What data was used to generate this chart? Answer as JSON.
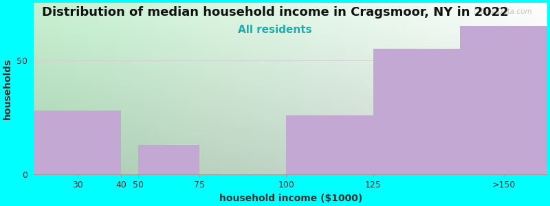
{
  "title": "Distribution of median household income in Cragsmoor, NY in 2022",
  "subtitle": "All residents",
  "xlabel": "household income ($1000)",
  "ylabel": "households",
  "background_color": "#00FFFF",
  "bar_color": "#c4a8d4",
  "watermark": "Ⓢ City-Data.com",
  "categories": [
    "30",
    "40",
    "50",
    "75",
    "100",
    "125",
    ">150"
  ],
  "bar_lefts": [
    15,
    40,
    45,
    62.5,
    87.5,
    112.5,
    137.5
  ],
  "bar_rights": [
    40,
    45,
    62.5,
    87.5,
    112.5,
    137.5,
    162.5
  ],
  "values": [
    28,
    0,
    13,
    0,
    26,
    55,
    65
  ],
  "tick_vals": [
    15,
    40,
    45,
    62.5,
    87.5,
    112.5,
    137.5,
    162.5
  ],
  "tick_labels": [
    "30",
    "40",
    "50",
    "75",
    "100",
    "125",
    ">150",
    ""
  ],
  "xlim": [
    15,
    162.5
  ],
  "ylim": [
    0,
    75
  ],
  "yticks": [
    0,
    50
  ],
  "grid_color": "#d0d0d0",
  "title_fontsize": 13,
  "subtitle_fontsize": 11,
  "axis_label_fontsize": 10,
  "tick_fontsize": 9,
  "plot_bg_left_color": "#c8f0d0",
  "plot_bg_right_color": "#ffffff"
}
